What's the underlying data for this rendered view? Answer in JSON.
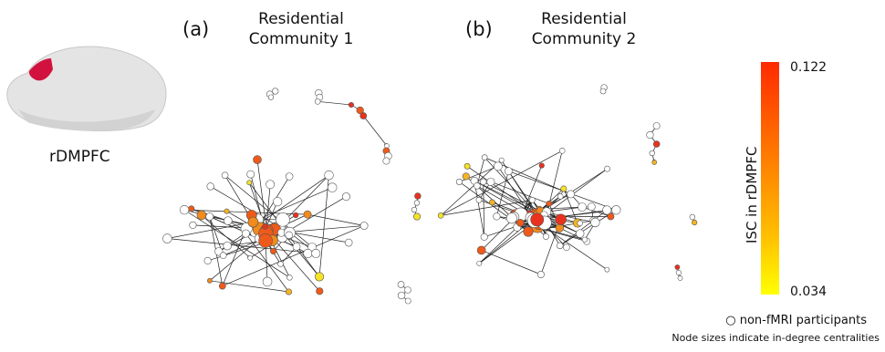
{
  "brain": {
    "label": "rDMPFC",
    "region_color": "#d1123f"
  },
  "panels": [
    {
      "letter": "(a)",
      "title": "Residential\nCommunity 1"
    },
    {
      "letter": "(b)",
      "title": "Residential\nCommunity 2"
    }
  ],
  "colorbar": {
    "title": "ISC in rDMPFC",
    "max_label": "0.122",
    "min_label": "0.034",
    "color_max": "#ff2a00",
    "color_min": "#ffff00"
  },
  "legend": {
    "open_node": "○ non-fMRI participants",
    "note": "Node sizes indicate in-degree centralities"
  },
  "colors": {
    "red": "#e8321e",
    "orange_red": "#ef5a1a",
    "orange": "#f28a1c",
    "yellow_orange": "#f5b521",
    "yellow": "#f7e224",
    "empty": "#ffffff",
    "edge": "#222222"
  }
}
